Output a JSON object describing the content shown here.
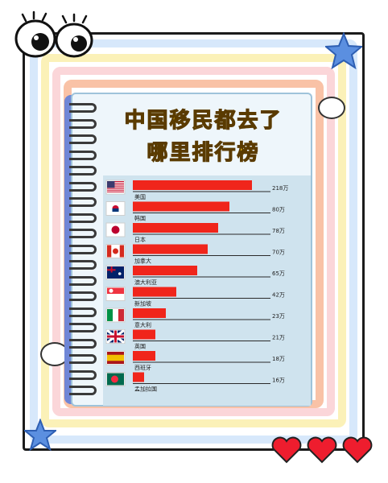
{
  "title": {
    "line1": "中国移民都去了",
    "line2": "哪里排行榜"
  },
  "colors": {
    "bar": "#f0251b",
    "axis": "#2a2a2a",
    "title_fill": "#f6c61a"
  },
  "chart_data": {
    "type": "bar",
    "orientation": "horizontal",
    "title": "中国移民都去了哪里排行榜",
    "categories": [
      "美国",
      "韩国",
      "日本",
      "加拿大",
      "澳大利亚",
      "新加坡",
      "意大利",
      "英国",
      "西班牙",
      "孟加拉国"
    ],
    "flags": [
      "flag-usa-icon",
      "flag-korea-icon",
      "flag-japan-icon",
      "flag-canada-icon",
      "flag-australia-icon",
      "flag-singapore-icon",
      "flag-italy-icon",
      "flag-uk-icon",
      "flag-spain-icon",
      "flag-bangladesh-icon"
    ],
    "values": [
      218,
      80,
      78,
      70,
      65,
      42,
      23,
      21,
      18,
      16
    ],
    "value_labels": [
      "218万",
      "80万",
      "78万",
      "70万",
      "65万",
      "42万",
      "23万",
      "21万",
      "18万",
      "16万"
    ],
    "unit": "万"
  }
}
